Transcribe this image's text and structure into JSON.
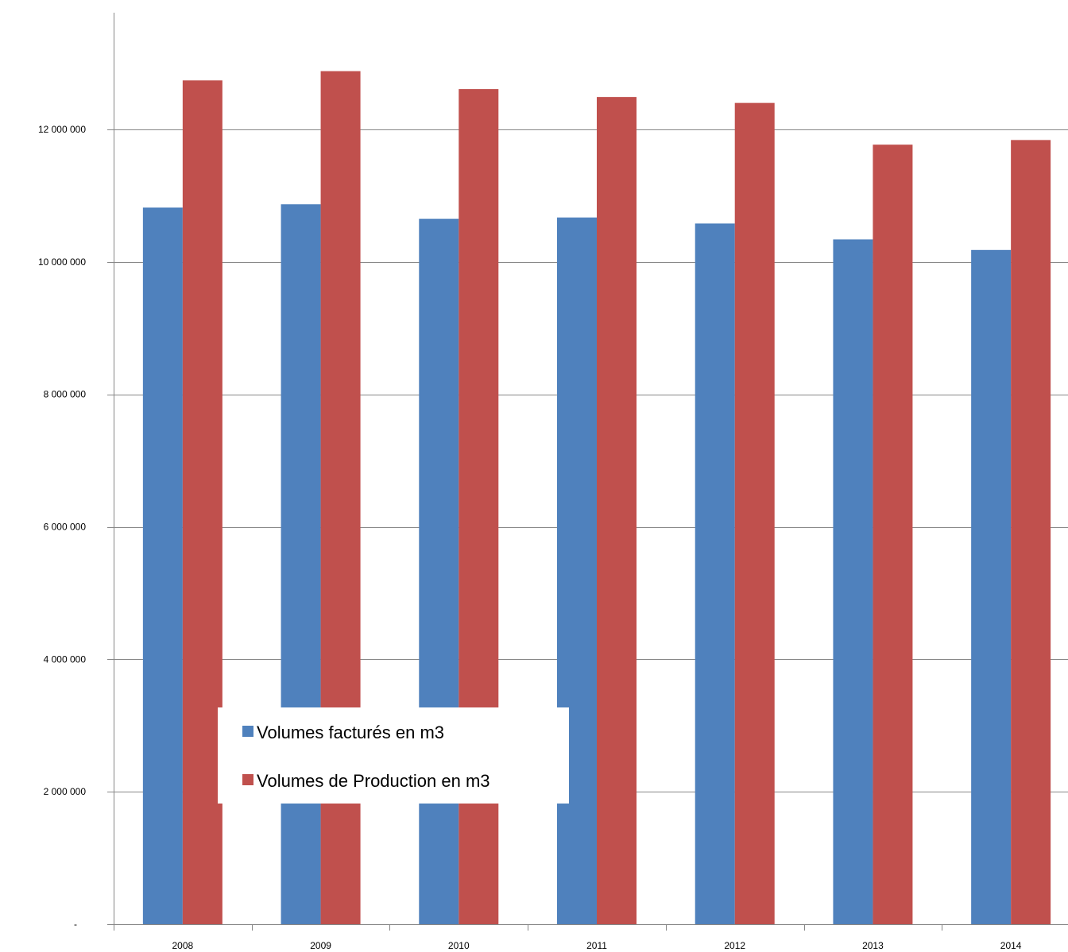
{
  "chart_data": {
    "type": "bar",
    "categories": [
      "2008",
      "2009",
      "2010",
      "2011",
      "2012",
      "2013",
      "2014"
    ],
    "series": [
      {
        "name": "Volumes facturés en m3",
        "color": "#4F81BD",
        "values": [
          10820000,
          10870000,
          10650000,
          10670000,
          10580000,
          10340000,
          10180000
        ]
      },
      {
        "name": "Volumes de Production en m3",
        "color": "#C0504D",
        "values": [
          12740000,
          12880000,
          12610000,
          12490000,
          12400000,
          11770000,
          11840000
        ]
      }
    ],
    "ylim": [
      0,
      14000000
    ],
    "yticks": [
      {
        "value": 0,
        "label": "-"
      },
      {
        "value": 2000000,
        "label": "2 000 000"
      },
      {
        "value": 4000000,
        "label": "4 000 000"
      },
      {
        "value": 6000000,
        "label": "6 000 000"
      },
      {
        "value": 8000000,
        "label": "8 000 000"
      },
      {
        "value": 10000000,
        "label": "10 000 000"
      },
      {
        "value": 12000000,
        "label": "12 000 000"
      }
    ],
    "grid": true,
    "legend": "bottom-left inside plot",
    "title": "",
    "xlabel": "",
    "ylabel": ""
  }
}
